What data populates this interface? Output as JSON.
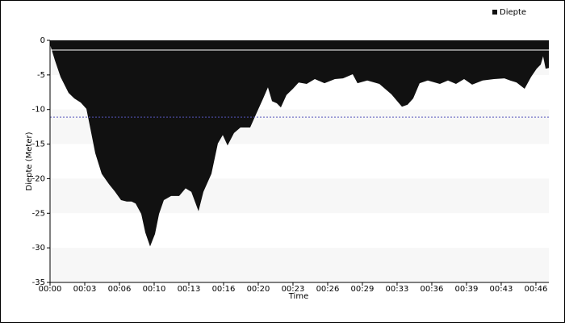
{
  "chart_data": {
    "type": "area",
    "xlabel": "Time",
    "ylabel": "Diepte (Meter)",
    "x": [
      0,
      0.47,
      1.01,
      1.78,
      2.33,
      2.95,
      3.49,
      3.88,
      4.34,
      4.96,
      5.66,
      6.2,
      6.82,
      7.36,
      7.83,
      8.22,
      8.76,
      9.15,
      9.61,
      10.08,
      10.47,
      10.93,
      11.63,
      12.4,
      13.02,
      13.57,
      14.26,
      14.73,
      15.5,
      16.12,
      16.59,
      17.05,
      17.67,
      18.29,
      19.22,
      19.84,
      20.47,
      20.93,
      21.32,
      21.78,
      22.17,
      22.71,
      23.33,
      23.88,
      24.65,
      25.43,
      26.36,
      27.36,
      28.14,
      29.07,
      29.53,
      30.47,
      31.63,
      32.79,
      33.8,
      34.34,
      34.88,
      35.5,
      36.28,
      37.44,
      38.22,
      38.99,
      39.77,
      40.54,
      41.55,
      42.64,
      43.64,
      44.19,
      44.81,
      45.58,
      46.2,
      46.74,
      47.13,
      47.36,
      47.6,
      47.91
    ],
    "series": [
      {
        "name": "Diepte",
        "color": "#111111",
        "values": [
          -0.6,
          -2.9,
          -5.3,
          -7.6,
          -8.4,
          -9,
          -9.9,
          -12.8,
          -16.3,
          -19.3,
          -20.8,
          -21.8,
          -23.1,
          -23.3,
          -23.3,
          -23.6,
          -25.1,
          -27.8,
          -29.8,
          -28,
          -25.1,
          -23.1,
          -22.5,
          -22.5,
          -21.4,
          -21.9,
          -24.7,
          -21.9,
          -19.3,
          -14.9,
          -13.7,
          -15.2,
          -13.4,
          -12.6,
          -12.6,
          -10.5,
          -8.4,
          -6.8,
          -8.8,
          -9.1,
          -9.7,
          -7.9,
          -7,
          -6.1,
          -6.3,
          -5.6,
          -6.2,
          -5.6,
          -5.5,
          -4.9,
          -6.2,
          -5.8,
          -6.3,
          -7.8,
          -9.6,
          -9.3,
          -8.4,
          -6.2,
          -5.8,
          -6.3,
          -5.8,
          -6.3,
          -5.6,
          -6.4,
          -5.8,
          -5.6,
          -5.5,
          -5.8,
          -6.1,
          -7,
          -5.3,
          -4.1,
          -3.5,
          -2.3,
          -4.1,
          -4
        ]
      }
    ],
    "xlim": [
      0,
      47.91
    ],
    "xticks": [
      {
        "value": 0,
        "label": "00:00"
      },
      {
        "value": 3.333,
        "label": "00:03"
      },
      {
        "value": 6.667,
        "label": "00:06"
      },
      {
        "value": 10,
        "label": "00:10"
      },
      {
        "value": 13.333,
        "label": "00:13"
      },
      {
        "value": 16.667,
        "label": "00:16"
      },
      {
        "value": 20,
        "label": "00:20"
      },
      {
        "value": 23.333,
        "label": "00:23"
      },
      {
        "value": 26.667,
        "label": "00:26"
      },
      {
        "value": 30,
        "label": "00:29"
      },
      {
        "value": 33.333,
        "label": "00:33"
      },
      {
        "value": 36.667,
        "label": "00:36"
      },
      {
        "value": 40,
        "label": "00:39"
      },
      {
        "value": 43.333,
        "label": "00:43"
      },
      {
        "value": 46.667,
        "label": "00:46"
      }
    ],
    "ylim": [
      -35,
      0
    ],
    "yticks": [
      0,
      -5,
      -10,
      -15,
      -20,
      -25,
      -30,
      -35
    ],
    "band_colors": [
      "#f7f7f7",
      "#ffffff"
    ],
    "reference_lines": [
      {
        "value": -1.4,
        "color": "#ffffff"
      },
      {
        "value": -11.1,
        "color": "#5555bb",
        "dashed": true
      }
    ],
    "legend": "top-right"
  }
}
